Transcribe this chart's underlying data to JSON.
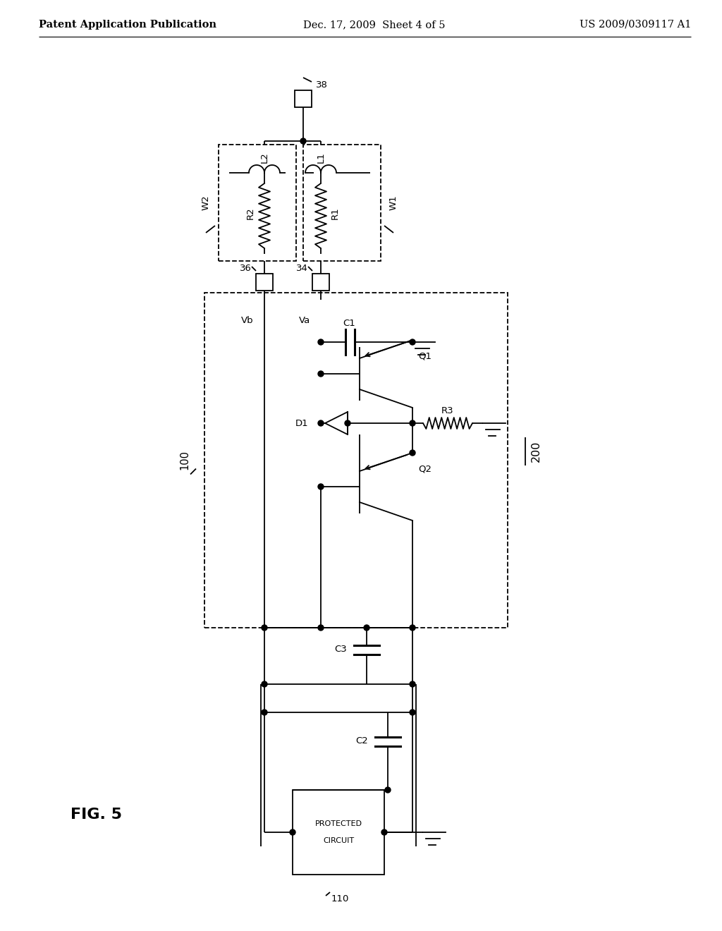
{
  "bg_color": "#ffffff",
  "line_color": "#000000",
  "header_left": "Patent Application Publication",
  "header_mid": "Dec. 17, 2009  Sheet 4 of 5",
  "header_right": "US 2009/0309117 A1",
  "fig_label": "FIG. 5",
  "lw": 1.3,
  "fs": 9.5
}
